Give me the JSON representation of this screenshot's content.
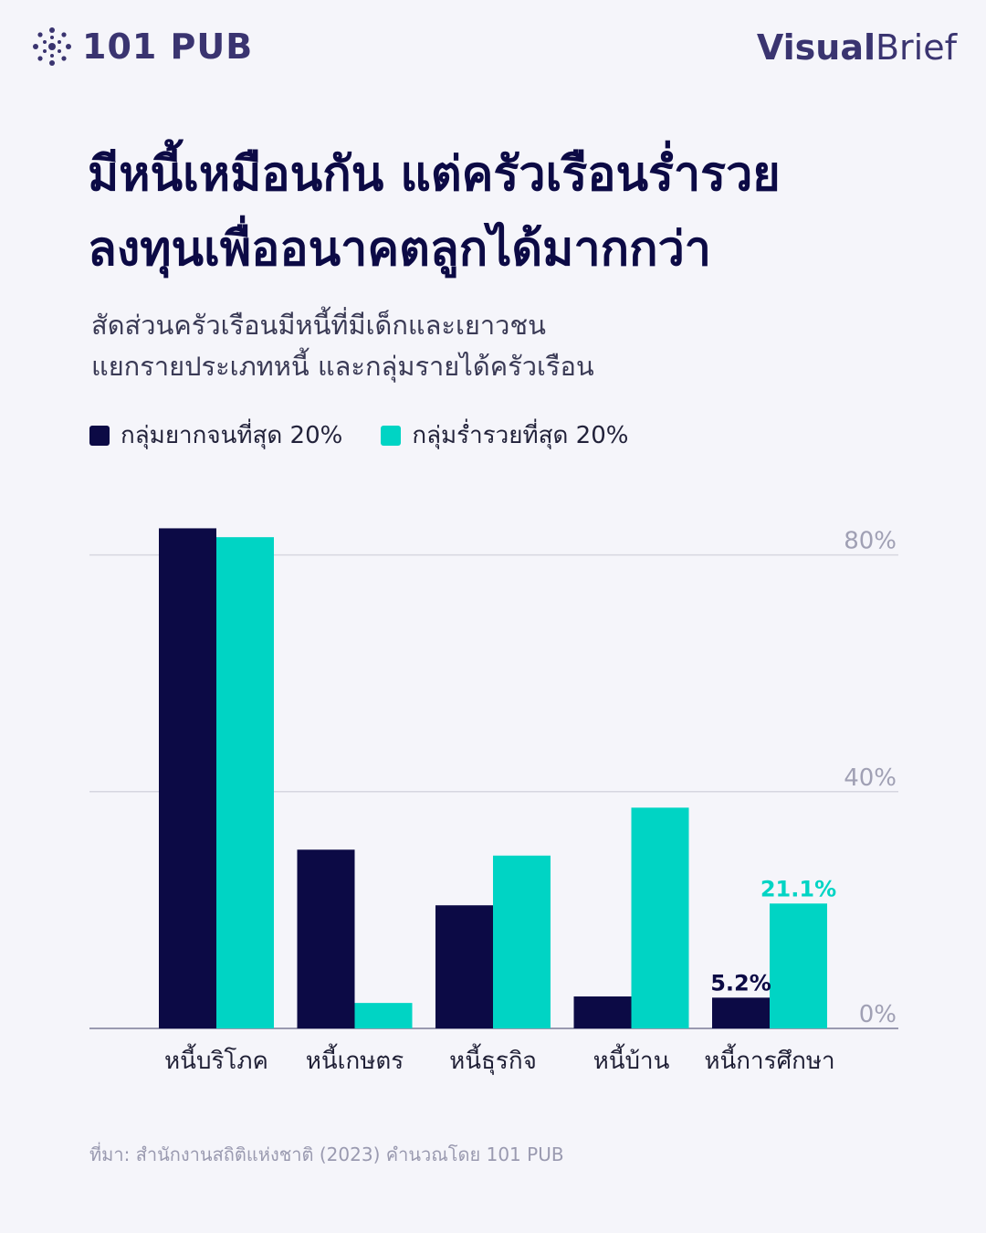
{
  "header": {
    "brand": "101 PUB",
    "series_bold": "Visual",
    "series_light": "Brief",
    "logo_icon": "network-dots-icon"
  },
  "title": {
    "line1": "มีหนี้เหมือนกัน แต่ครัวเรือนร่ำรวย",
    "line2": "ลงทุนเพื่ออนาคตลูกได้มากกว่า"
  },
  "subtitle": {
    "line1": "สัดส่วนครัวเรือนมีหนี้ที่มีเด็กและเยาวชน",
    "line2": "แยกรายประเภทหนี้ และกลุ่มรายได้ครัวเรือน"
  },
  "legend": [
    {
      "label": "กลุ่มยากจนที่สุด 20%",
      "color": "#0c0a45"
    },
    {
      "label": "กลุ่มร่ำรวยที่สุด 20%",
      "color": "#00d4c4"
    }
  ],
  "chart_data": {
    "type": "bar",
    "categories": [
      "หนี้บริโภค",
      "หนี้เกษตร",
      "หนี้ธุรกิจ",
      "หนี้บ้าน",
      "หนี้การศึกษา"
    ],
    "series": [
      {
        "name": "กลุ่มยากจนที่สุด 20%",
        "values": [
          84.5,
          30.2,
          20.8,
          5.4,
          5.2
        ],
        "color": "#0c0a45"
      },
      {
        "name": "กลุ่มร่ำรวยที่สุด 20%",
        "values": [
          83.0,
          4.3,
          29.2,
          37.3,
          21.1
        ],
        "color": "#00d4c4"
      }
    ],
    "data_labels": [
      {
        "series": 0,
        "category": 4,
        "text": "5.2%"
      },
      {
        "series": 1,
        "category": 4,
        "text": "21.1%"
      }
    ],
    "yticks": [
      {
        "value": 0,
        "label": "0%"
      },
      {
        "value": 40,
        "label": "40%"
      },
      {
        "value": 80,
        "label": "80%"
      }
    ],
    "ylim": [
      0,
      90
    ],
    "grid": true,
    "grid_color": "#d6d6e0"
  },
  "source": "ที่มา: สำนักงานสถิติแห่งชาติ (2023) คำนวณโดย 101 PUB"
}
